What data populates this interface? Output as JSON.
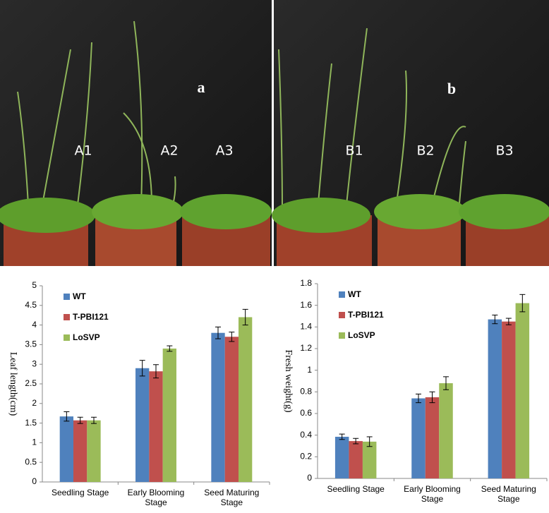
{
  "photos": {
    "panels": [
      {
        "label": "a",
        "plants": [
          "A1",
          "A2",
          "A3"
        ]
      },
      {
        "label": "b",
        "plants": [
          "B1",
          "B2",
          "B3"
        ]
      }
    ]
  },
  "chart_data": [
    {
      "type": "bar",
      "y_label": "Leaf length(cm)",
      "categories": [
        "Seedling Stage",
        "Early Blooming Stage",
        "Seed Maturing Stage"
      ],
      "series": [
        {
          "name": "WT",
          "color": "#4f81bd",
          "values": [
            1.67,
            2.9,
            3.8
          ],
          "errors": [
            0.12,
            0.2,
            0.15
          ]
        },
        {
          "name": "T-PBI121",
          "color": "#c0504d",
          "values": [
            1.57,
            2.82,
            3.7
          ],
          "errors": [
            0.08,
            0.17,
            0.12
          ]
        },
        {
          "name": "LoSVP",
          "color": "#9bbb59",
          "values": [
            1.57,
            3.4,
            4.2
          ],
          "errors": [
            0.08,
            0.07,
            0.2
          ]
        }
      ],
      "ylim": [
        0,
        5
      ],
      "yticks": [
        0,
        0.5,
        1,
        1.5,
        2,
        2.5,
        3,
        3.5,
        4,
        4.5,
        5
      ],
      "legend": "top-left"
    },
    {
      "type": "bar",
      "y_label": "Fresh weight(g)",
      "categories": [
        "Seedling Stage",
        "Early Blooming Stage",
        "Seed Maturing Stage"
      ],
      "series": [
        {
          "name": "WT",
          "color": "#4f81bd",
          "values": [
            0.385,
            0.74,
            1.47
          ],
          "errors": [
            0.025,
            0.04,
            0.04
          ]
        },
        {
          "name": "T-PBI121",
          "color": "#c0504d",
          "values": [
            0.345,
            0.75,
            1.45
          ],
          "errors": [
            0.025,
            0.05,
            0.03
          ]
        },
        {
          "name": "LoSVP",
          "color": "#9bbb59",
          "values": [
            0.34,
            0.88,
            1.62
          ],
          "errors": [
            0.045,
            0.06,
            0.08
          ]
        }
      ],
      "ylim": [
        0,
        1.8
      ],
      "yticks": [
        0,
        0.2,
        0.4,
        0.6,
        0.8,
        1,
        1.2,
        1.4,
        1.6,
        1.8
      ],
      "legend": "top-left"
    }
  ]
}
